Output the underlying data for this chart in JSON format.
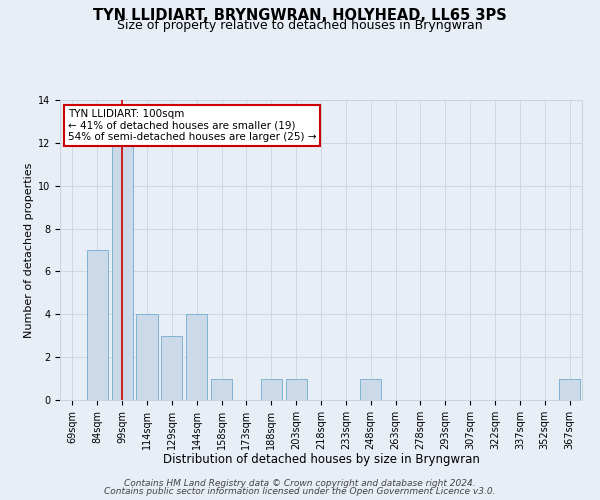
{
  "title": "TYN LLIDIART, BRYNGWRAN, HOLYHEAD, LL65 3PS",
  "subtitle": "Size of property relative to detached houses in Bryngwran",
  "xlabel": "Distribution of detached houses by size in Bryngwran",
  "ylabel": "Number of detached properties",
  "categories": [
    "69sqm",
    "84sqm",
    "99sqm",
    "114sqm",
    "129sqm",
    "144sqm",
    "158sqm",
    "173sqm",
    "188sqm",
    "203sqm",
    "218sqm",
    "233sqm",
    "248sqm",
    "263sqm",
    "278sqm",
    "293sqm",
    "307sqm",
    "322sqm",
    "337sqm",
    "352sqm",
    "367sqm"
  ],
  "values": [
    0,
    7,
    12,
    4,
    3,
    4,
    1,
    0,
    1,
    1,
    0,
    0,
    1,
    0,
    0,
    0,
    0,
    0,
    0,
    0,
    1
  ],
  "bar_color": "#ccd9e8",
  "bar_edge_color": "#7fb3d3",
  "grid_color": "#c8d4e0",
  "background_color": "#e8eef5",
  "vline_x_index": 2,
  "vline_color": "#cc0000",
  "annotation_line1": "TYN LLIDIART: 100sqm",
  "annotation_line2": "← 41% of detached houses are smaller (19)",
  "annotation_line3": "54% of semi-detached houses are larger (25) →",
  "annotation_box_color": "#ffffff",
  "annotation_box_edge_color": "#cc0000",
  "ylim": [
    0,
    14
  ],
  "yticks": [
    0,
    2,
    4,
    6,
    8,
    10,
    12,
    14
  ],
  "footer_line1": "Contains HM Land Registry data © Crown copyright and database right 2024.",
  "footer_line2": "Contains public sector information licensed under the Open Government Licence v3.0.",
  "title_fontsize": 10.5,
  "subtitle_fontsize": 9,
  "xlabel_fontsize": 8.5,
  "ylabel_fontsize": 8,
  "tick_fontsize": 7,
  "annot_fontsize": 7.5,
  "footer_fontsize": 6.5
}
